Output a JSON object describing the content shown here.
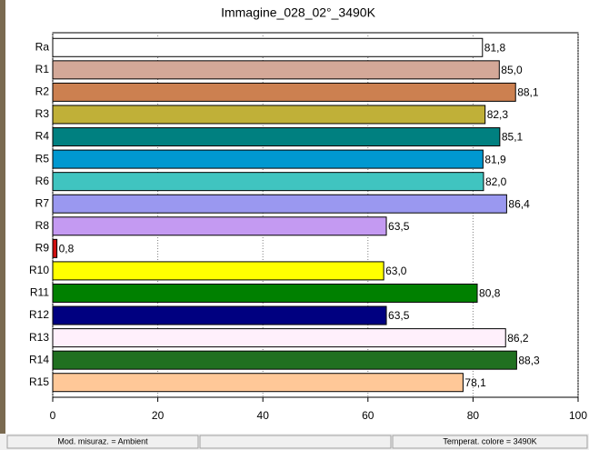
{
  "chart_data": {
    "type": "hbar",
    "title": "Immagine_028_02°_3490K",
    "categories": [
      "Ra",
      "R1",
      "R2",
      "R3",
      "R4",
      "R5",
      "R6",
      "R7",
      "R8",
      "R9",
      "R10",
      "R11",
      "R12",
      "R13",
      "R14",
      "R15"
    ],
    "values": [
      81.8,
      85.0,
      88.1,
      82.3,
      85.1,
      81.9,
      82.0,
      86.4,
      63.5,
      0.8,
      63.0,
      80.8,
      63.5,
      86.2,
      88.3,
      78.1
    ],
    "value_labels": [
      "81,8",
      "85,0",
      "88,1",
      "82,3",
      "85,1",
      "81,9",
      "82,0",
      "86,4",
      "63,5",
      "0,8",
      "63,0",
      "80,8",
      "63,5",
      "86,2",
      "88,3",
      "78,1"
    ],
    "colors": [
      "#ffffff",
      "#d4a898",
      "#cc8050",
      "#c0b038",
      "#008080",
      "#0098d0",
      "#40c4c0",
      "#9a98f0",
      "#c49af2",
      "#d01010",
      "#ffff00",
      "#008000",
      "#000080",
      "#fff0fc",
      "#207020",
      "#ffc898"
    ],
    "xlim": [
      0,
      100
    ],
    "xticks": [
      0,
      20,
      40,
      60,
      80,
      100
    ],
    "grid": true
  },
  "status_bar": {
    "left": "Mod. misuraz. = Ambient",
    "right": "Temperat. colore = 3490K"
  }
}
